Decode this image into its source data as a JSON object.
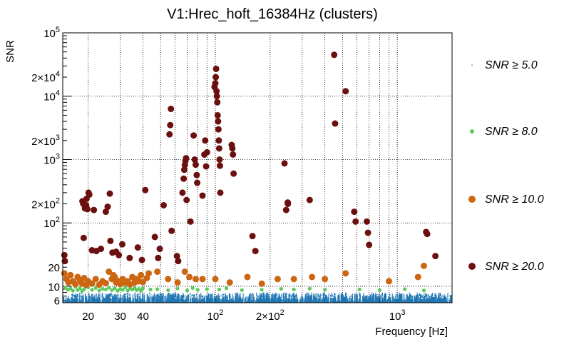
{
  "chart_data": {
    "type": "scatter",
    "title": "V1:Hrec_hoft_16384Hz (clusters)",
    "xlabel": "Frequency [Hz]",
    "ylabel": "SNR",
    "x_scale": "log",
    "y_scale": "log",
    "xlim": [
      14.5,
      2000
    ],
    "ylim": [
      5.5,
      100000
    ],
    "grid": true,
    "legend_position": "right",
    "x_ticks": [
      {
        "value": 20,
        "label": "20"
      },
      {
        "value": 30,
        "label": "30"
      },
      {
        "value": 40,
        "label": "40"
      },
      {
        "value": 100,
        "label": "10^2"
      },
      {
        "value": 200,
        "label": "2×10^2"
      },
      {
        "value": 1000,
        "label": "10^3"
      }
    ],
    "y_ticks": [
      {
        "value": 6,
        "label": "6"
      },
      {
        "value": 10,
        "label": "10"
      },
      {
        "value": 20,
        "label": "20"
      },
      {
        "value": 100,
        "label": "10^2"
      },
      {
        "value": 200,
        "label": "2×10^2"
      },
      {
        "value": 1000,
        "label": "10^3"
      },
      {
        "value": 2000,
        "label": "2×10^3"
      },
      {
        "value": 10000,
        "label": "10^4"
      },
      {
        "value": 20000,
        "label": "2×10^4"
      },
      {
        "value": 100000,
        "label": "10^5"
      }
    ],
    "series": [
      {
        "name": "SNR ≥ 5.0",
        "color": "#1f77b4",
        "marker": "dot",
        "description_points": "dense band of many points between SNR 5 and 8 across 14.5–2000 Hz",
        "x_range": [
          14.5,
          2000
        ],
        "y_range": [
          5.5,
          8
        ]
      },
      {
        "name": "SNR ≥ 8.0",
        "color": "#5ec95e",
        "marker": "circle",
        "points": [
          [
            15,
            9.5
          ],
          [
            15.5,
            8.8
          ],
          [
            16,
            9.2
          ],
          [
            16.5,
            8.5
          ],
          [
            17,
            9.8
          ],
          [
            17.5,
            8.7
          ],
          [
            18,
            9.3
          ],
          [
            18.5,
            8.4
          ],
          [
            19,
            9.0
          ],
          [
            20,
            9.6
          ],
          [
            21,
            8.8
          ],
          [
            22,
            9.4
          ],
          [
            23,
            8.6
          ],
          [
            24,
            9.1
          ],
          [
            25,
            8.9
          ],
          [
            26,
            9.5
          ],
          [
            27,
            8.7
          ],
          [
            28,
            9.3
          ],
          [
            29,
            8.5
          ],
          [
            30,
            9.0
          ],
          [
            31,
            8.8
          ],
          [
            32,
            9.6
          ],
          [
            33,
            8.6
          ],
          [
            34,
            9.2
          ],
          [
            35,
            8.9
          ],
          [
            36,
            9.4
          ],
          [
            37,
            8.7
          ],
          [
            38,
            9.1
          ],
          [
            39,
            8.5
          ],
          [
            40,
            9.3
          ],
          [
            44,
            8.9
          ],
          [
            48,
            9.0
          ],
          [
            55,
            8.7
          ],
          [
            62,
            9.2
          ],
          [
            70,
            8.6
          ],
          [
            75,
            9.4
          ],
          [
            80,
            8.8
          ],
          [
            90,
            9.0
          ],
          [
            105,
            8.9
          ],
          [
            115,
            9.3
          ],
          [
            140,
            8.7
          ],
          [
            180,
            8.8
          ],
          [
            230,
            9.1
          ],
          [
            270,
            8.9
          ],
          [
            330,
            9.2
          ],
          [
            400,
            8.8
          ],
          [
            620,
            8.9
          ],
          [
            800,
            8.7
          ],
          [
            1100,
            9.0
          ],
          [
            1400,
            8.6
          ]
        ]
      },
      {
        "name": "SNR ≥ 10.0",
        "color": "#cc6611",
        "marker": "circle",
        "points": [
          [
            14.8,
            16
          ],
          [
            15.2,
            13
          ],
          [
            15.6,
            11.5
          ],
          [
            16,
            15
          ],
          [
            16.5,
            12
          ],
          [
            17,
            10.8
          ],
          [
            17.5,
            14
          ],
          [
            18,
            12.5
          ],
          [
            18.5,
            11
          ],
          [
            19,
            13.5
          ],
          [
            19.5,
            10.5
          ],
          [
            20,
            12
          ],
          [
            21,
            11
          ],
          [
            22,
            13
          ],
          [
            23,
            10.6
          ],
          [
            24,
            12
          ],
          [
            25,
            11.2
          ],
          [
            26,
            17
          ],
          [
            27,
            13
          ],
          [
            27.5,
            15
          ],
          [
            28,
            14
          ],
          [
            28.5,
            11.5
          ],
          [
            29,
            12.2
          ],
          [
            30,
            10.8
          ],
          [
            31,
            13
          ],
          [
            32,
            11.4
          ],
          [
            33,
            12
          ],
          [
            34,
            10.7
          ],
          [
            35,
            14
          ],
          [
            36,
            11.5
          ],
          [
            37,
            13
          ],
          [
            38,
            12
          ],
          [
            39,
            15
          ],
          [
            40,
            11.7
          ],
          [
            42,
            13.5
          ],
          [
            43,
            16
          ],
          [
            48,
            17
          ],
          [
            55,
            13
          ],
          [
            62,
            11.5
          ],
          [
            68,
            17
          ],
          [
            72,
            14
          ],
          [
            78,
            13
          ],
          [
            85,
            13
          ],
          [
            100,
            13
          ],
          [
            120,
            11.5
          ],
          [
            150,
            14
          ],
          [
            180,
            11
          ],
          [
            220,
            13
          ],
          [
            270,
            13
          ],
          [
            340,
            14
          ],
          [
            400,
            13
          ],
          [
            520,
            16
          ],
          [
            900,
            12
          ],
          [
            1300,
            14
          ],
          [
            1400,
            21
          ]
        ]
      },
      {
        "name": "SNR ≥ 20.0",
        "color": "#6b0f0f",
        "marker": "circle",
        "points": [
          [
            14.8,
            31
          ],
          [
            14.9,
            25
          ],
          [
            19.5,
            190
          ],
          [
            19.6,
            240
          ],
          [
            20.1,
            300
          ],
          [
            20.3,
            280
          ],
          [
            21.5,
            160
          ],
          [
            19.2,
            170
          ],
          [
            19.8,
            165
          ],
          [
            18.8,
            200
          ],
          [
            18.6,
            220
          ],
          [
            18.9,
            58
          ],
          [
            21,
            37
          ],
          [
            22.2,
            36
          ],
          [
            23.5,
            39
          ],
          [
            25,
            150
          ],
          [
            25.6,
            180
          ],
          [
            26.3,
            290
          ],
          [
            26.5,
            52
          ],
          [
            27.2,
            34
          ],
          [
            28.5,
            35
          ],
          [
            29.5,
            31
          ],
          [
            30.8,
            46
          ],
          [
            33.8,
            28
          ],
          [
            37.5,
            41
          ],
          [
            39.5,
            26
          ],
          [
            41.2,
            330
          ],
          [
            46.5,
            60
          ],
          [
            48.5,
            28
          ],
          [
            49.5,
            39
          ],
          [
            52,
            190
          ],
          [
            56,
            2500
          ],
          [
            56.5,
            3500
          ],
          [
            57,
            6300
          ],
          [
            57.5,
            75
          ],
          [
            61.5,
            30
          ],
          [
            62.5,
            25
          ],
          [
            66,
            300
          ],
          [
            67,
            500
          ],
          [
            67.5,
            690
          ],
          [
            68,
            820
          ],
          [
            68.5,
            950
          ],
          [
            69,
            1050
          ],
          [
            69.5,
            230
          ],
          [
            73,
            105
          ],
          [
            76,
            2400
          ],
          [
            77,
            1000
          ],
          [
            78,
            830
          ],
          [
            79,
            570
          ],
          [
            79.5,
            430
          ],
          [
            85,
            270
          ],
          [
            87,
            1200
          ],
          [
            88,
            2000
          ],
          [
            89,
            780
          ],
          [
            90,
            1300
          ],
          [
            99,
            14000
          ],
          [
            100,
            16000
          ],
          [
            100.5,
            20000
          ],
          [
            101,
            27000
          ],
          [
            101.5,
            12000
          ],
          [
            102,
            10000
          ],
          [
            102.5,
            8000
          ],
          [
            103,
            5000
          ],
          [
            103.5,
            4000
          ],
          [
            104,
            3000
          ],
          [
            104.5,
            2000
          ],
          [
            105,
            1500
          ],
          [
            105.5,
            1000
          ],
          [
            106,
            800
          ],
          [
            106.5,
            300
          ],
          [
            123,
            1700
          ],
          [
            124,
            1500
          ],
          [
            125,
            1200
          ],
          [
            126,
            600
          ],
          [
            160,
            62
          ],
          [
            166,
            36
          ],
          [
            240,
            870
          ],
          [
            245,
            160
          ],
          [
            250,
            210
          ],
          [
            250.5,
            200
          ],
          [
            330,
            230
          ],
          [
            450,
            45000
          ],
          [
            455,
            3700
          ],
          [
            520,
            12000
          ],
          [
            580,
            150
          ],
          [
            590,
            105
          ],
          [
            680,
            105
          ],
          [
            690,
            70
          ],
          [
            700,
            45
          ],
          [
            1440,
            72
          ],
          [
            1460,
            67
          ],
          [
            1620,
            30
          ]
        ]
      }
    ]
  }
}
